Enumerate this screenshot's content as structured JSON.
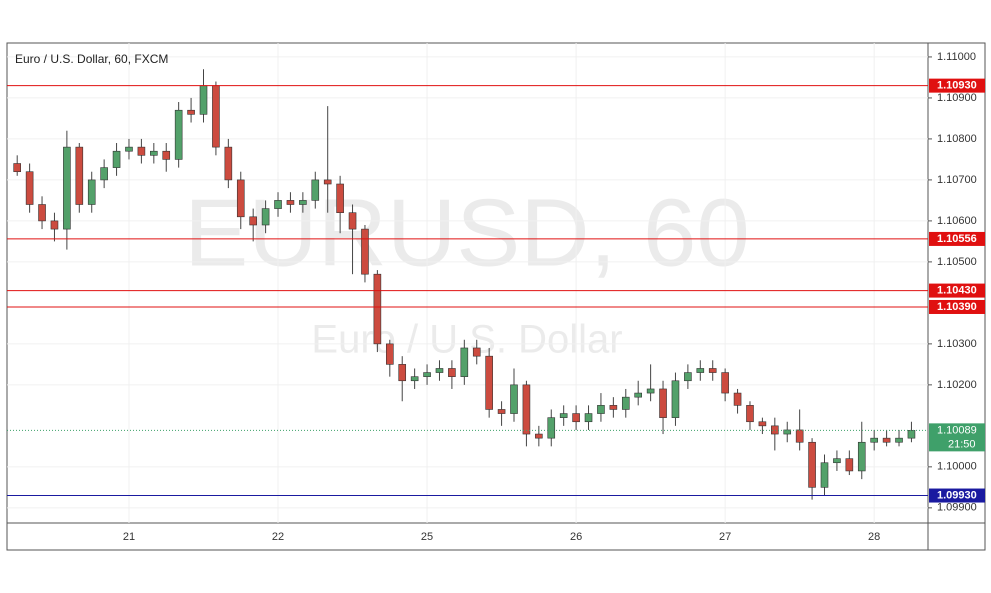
{
  "chart_data": {
    "type": "candlestick",
    "title": "Euro / U.S. Dollar, 60, FXCM",
    "watermark": "EURUSD, 60",
    "watermark_subtitle": "Euro / U.S. Dollar",
    "categories": [
      null,
      null,
      null,
      null,
      null,
      null,
      null,
      null,
      null,
      "21",
      null,
      null,
      null,
      null,
      null,
      null,
      null,
      null,
      null,
      null,
      null,
      "22",
      null,
      null,
      null,
      null,
      null,
      null,
      null,
      null,
      null,
      null,
      null,
      "25",
      null,
      null,
      null,
      null,
      null,
      null,
      null,
      null,
      null,
      null,
      null,
      "26",
      null,
      null,
      null,
      null,
      null,
      null,
      null,
      null,
      null,
      null,
      null,
      "27",
      null,
      null,
      null,
      null,
      null,
      null,
      null,
      null,
      null,
      null,
      null,
      "28",
      null,
      null,
      null
    ],
    "open": [
      1.1074,
      1.1072,
      1.1064,
      1.106,
      1.1058,
      1.1078,
      1.1064,
      1.107,
      1.1073,
      1.1077,
      1.1078,
      1.1076,
      1.1077,
      1.1075,
      1.1087,
      1.1086,
      1.1093,
      1.1078,
      1.107,
      1.1061,
      1.1059,
      1.1063,
      1.1065,
      1.1064,
      1.1065,
      1.107,
      1.1069,
      1.1062,
      1.1058,
      1.1047,
      1.103,
      1.1025,
      1.1021,
      1.1022,
      1.1023,
      1.1024,
      1.1022,
      1.1029,
      1.1027,
      1.1014,
      1.1013,
      1.102,
      1.1008,
      1.1007,
      1.1012,
      1.1013,
      1.1011,
      1.1013,
      1.1015,
      1.1014,
      1.1017,
      1.1018,
      1.1019,
      1.1012,
      1.1021,
      1.1023,
      1.1024,
      1.1023,
      1.1018,
      1.1015,
      1.1011,
      1.101,
      1.1008,
      1.1009,
      1.1006,
      1.0995,
      1.1001,
      1.1002,
      1.0999,
      1.1006,
      1.1007,
      1.1006,
      1.1007
    ],
    "high": [
      1.1076,
      1.1074,
      1.1066,
      1.1062,
      1.1082,
      1.1079,
      1.1072,
      1.1075,
      1.1079,
      1.108,
      1.108,
      1.1079,
      1.1079,
      1.1089,
      1.109,
      1.1097,
      1.1094,
      1.108,
      1.1072,
      1.1063,
      1.1065,
      1.1067,
      1.1067,
      1.1067,
      1.1072,
      1.1088,
      1.1071,
      1.1064,
      1.1059,
      1.1048,
      1.1031,
      1.1027,
      1.1024,
      1.1025,
      1.1026,
      1.1026,
      1.1031,
      1.1031,
      1.1029,
      1.1016,
      1.1024,
      1.1021,
      1.101,
      1.1014,
      1.1015,
      1.1015,
      1.1015,
      1.1018,
      1.1017,
      1.1019,
      1.1021,
      1.1025,
      1.1021,
      1.1023,
      1.1025,
      1.1026,
      1.1026,
      1.1024,
      1.1019,
      1.1016,
      1.1012,
      1.1012,
      1.1011,
      1.1014,
      1.1007,
      1.1003,
      1.1004,
      1.1004,
      1.1011,
      1.1009,
      1.1009,
      1.1009,
      1.1011
    ],
    "low": [
      1.1071,
      1.1062,
      1.1058,
      1.1055,
      1.1053,
      1.1062,
      1.1062,
      1.1068,
      1.1071,
      1.1075,
      1.1074,
      1.1074,
      1.1072,
      1.1073,
      1.1084,
      1.1084,
      1.1076,
      1.1068,
      1.1058,
      1.1055,
      1.1057,
      1.1061,
      1.1062,
      1.1062,
      1.1063,
      1.1062,
      1.1057,
      1.1047,
      1.1045,
      1.1028,
      1.1022,
      1.1016,
      1.1019,
      1.102,
      1.1021,
      1.1019,
      1.102,
      1.1025,
      1.1012,
      1.101,
      1.1011,
      1.1005,
      1.1005,
      1.1005,
      1.101,
      1.1009,
      1.1009,
      1.1011,
      1.1012,
      1.1012,
      1.1015,
      1.1016,
      1.1008,
      1.101,
      1.1019,
      1.1021,
      1.1021,
      1.1016,
      1.1013,
      1.1009,
      1.1008,
      1.1004,
      1.1006,
      1.1004,
      1.0992,
      1.0993,
      1.0999,
      1.0998,
      1.0997,
      1.1004,
      1.1005,
      1.1005,
      1.1006
    ],
    "close": [
      1.1072,
      1.1064,
      1.106,
      1.1058,
      1.1078,
      1.1064,
      1.107,
      1.1073,
      1.1077,
      1.1078,
      1.1076,
      1.1077,
      1.1075,
      1.1087,
      1.1086,
      1.1093,
      1.1078,
      1.107,
      1.1061,
      1.1059,
      1.1063,
      1.1065,
      1.1064,
      1.1065,
      1.107,
      1.1069,
      1.1062,
      1.1058,
      1.1047,
      1.103,
      1.1025,
      1.1021,
      1.1022,
      1.1023,
      1.1024,
      1.1022,
      1.1029,
      1.1027,
      1.1014,
      1.1013,
      1.102,
      1.1008,
      1.1007,
      1.1012,
      1.1013,
      1.1011,
      1.1013,
      1.1015,
      1.1014,
      1.1017,
      1.1018,
      1.1019,
      1.1012,
      1.1021,
      1.1023,
      1.1024,
      1.1023,
      1.1018,
      1.1015,
      1.1011,
      1.101,
      1.1008,
      1.1009,
      1.1006,
      1.0995,
      1.1001,
      1.1002,
      1.0999,
      1.1006,
      1.1007,
      1.1006,
      1.1007,
      1.10089
    ],
    "up_color": "#53a16a",
    "down_color": "#cc4b3f",
    "ylim": [
      1.09863,
      1.11034
    ],
    "yticks": [
      {
        "value": 1.099,
        "label": "1.09900"
      },
      {
        "value": 1.1,
        "label": "1.10000"
      },
      {
        "value": 1.102,
        "label": "1.10200"
      },
      {
        "value": 1.103,
        "label": "1.10300"
      },
      {
        "value": 1.105,
        "label": "1.10500"
      },
      {
        "value": 1.106,
        "label": "1.10600"
      },
      {
        "value": 1.107,
        "label": "1.10700"
      },
      {
        "value": 1.108,
        "label": "1.10800"
      },
      {
        "value": 1.109,
        "label": "1.10900"
      },
      {
        "value": 1.11,
        "label": "1.11000"
      }
    ],
    "grid": true,
    "levels": [
      {
        "value": 1.1093,
        "label": "1.10930",
        "color": "#e01010"
      },
      {
        "value": 1.10556,
        "label": "1.10556",
        "color": "#e01010"
      },
      {
        "value": 1.1043,
        "label": "1.10430",
        "color": "#e01010"
      },
      {
        "value": 1.1039,
        "label": "1.10390",
        "color": "#e01010"
      },
      {
        "value": 1.0993,
        "label": "1.09930",
        "color": "#1a1aa0"
      }
    ],
    "current_price": {
      "value": 1.10089,
      "label": "1.10089",
      "color": "#3fa06a"
    },
    "countdown": "21:50"
  }
}
